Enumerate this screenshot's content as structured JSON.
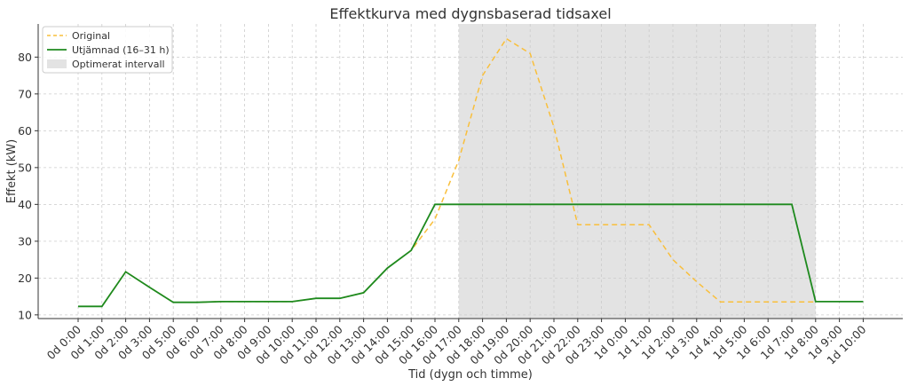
{
  "chart_data": {
    "type": "line",
    "title": "Effektkurva med dygnsbaserad tidsaxel",
    "xlabel": "Tid (dygn och timme)",
    "ylabel": "Effekt (kW)",
    "ylim": [
      9,
      89
    ],
    "yticks": [
      10,
      20,
      30,
      40,
      50,
      60,
      70,
      80
    ],
    "grid": true,
    "legend_position": "top-left",
    "categories": [
      "0d 0:00",
      "0d 1:00",
      "0d 2:00",
      "0d 3:00",
      "0d 5:00",
      "0d 6:00",
      "0d 7:00",
      "0d 8:00",
      "0d 9:00",
      "0d 10:00",
      "0d 11:00",
      "0d 12:00",
      "0d 13:00",
      "0d 14:00",
      "0d 15:00",
      "0d 16:00",
      "0d 17:00",
      "0d 18:00",
      "0d 19:00",
      "0d 20:00",
      "0d 21:00",
      "0d 22:00",
      "0d 23:00",
      "1d 0:00",
      "1d 1:00",
      "1d 2:00",
      "1d 3:00",
      "1d 4:00",
      "1d 5:00",
      "1d 6:00",
      "1d 7:00",
      "1d 8:00",
      "1d 9:00",
      "1d 10:00"
    ],
    "series": [
      {
        "name": "Original",
        "color": "#f9bf3b",
        "style": "dashed",
        "values": [
          12.3,
          12.3,
          21.7,
          17.5,
          13.4,
          13.4,
          13.6,
          13.6,
          13.6,
          13.6,
          14.5,
          14.5,
          16.0,
          22.7,
          27.5,
          36.0,
          52.0,
          75.0,
          85.0,
          81.0,
          61.0,
          34.5,
          34.5,
          34.5,
          34.5,
          25.0,
          19.0,
          13.5,
          13.5,
          13.5,
          13.5,
          13.5,
          null,
          null
        ]
      },
      {
        "name": "Utjämnad (16–31 h)",
        "color": "#1e8a1e",
        "style": "solid",
        "values": [
          12.3,
          12.3,
          21.7,
          17.5,
          13.4,
          13.4,
          13.6,
          13.6,
          13.6,
          13.6,
          14.5,
          14.5,
          16.0,
          22.7,
          27.5,
          40.0,
          40.0,
          40.0,
          40.0,
          40.0,
          40.0,
          40.0,
          40.0,
          40.0,
          40.0,
          40.0,
          40.0,
          40.0,
          40.0,
          40.0,
          40.0,
          13.6,
          13.6,
          13.6
        ]
      }
    ],
    "shaded_region": {
      "name": "Optimerat intervall",
      "color": "#e3e3e3",
      "from": "0d 17:00",
      "to": "1d 8:00"
    }
  }
}
